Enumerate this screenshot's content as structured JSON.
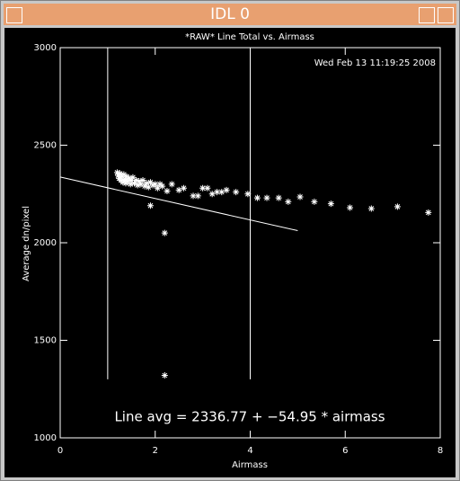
{
  "window_title": "IDL 0",
  "chart_data": {
    "type": "scatter",
    "title": "*RAW* Line Total vs. Airmass",
    "timestamp": "Wed Feb 13 11:19:25 2008",
    "annotation": "Line avg = 2336.77 + −54.95 * airmass",
    "xlabel": "Airmass",
    "ylabel": "Average dn/pixel",
    "color": "#ffffff",
    "xlim": [
      0,
      8
    ],
    "xticks": [
      0,
      2,
      4,
      6,
      8
    ],
    "ylim": [
      1000,
      3000
    ],
    "yticks": [
      1000,
      1500,
      2000,
      2500,
      3000
    ],
    "x": [
      1.2,
      1.22,
      1.24,
      1.26,
      1.28,
      1.3,
      1.32,
      1.34,
      1.36,
      1.38,
      1.4,
      1.42,
      1.45,
      1.48,
      1.5,
      1.53,
      1.56,
      1.6,
      1.63,
      1.66,
      1.7,
      1.74,
      1.78,
      1.82,
      1.86,
      1.9,
      1.95,
      2.0,
      2.05,
      2.1,
      2.15,
      2.25,
      2.35,
      1.9,
      2.2,
      2.2,
      2.5,
      2.6,
      2.8,
      2.9,
      3.0,
      3.1,
      3.2,
      3.3,
      3.4,
      3.5,
      3.7,
      3.95,
      4.15,
      4.35,
      4.6,
      4.8,
      5.05,
      5.35,
      5.7,
      6.1,
      6.55,
      7.1,
      7.75
    ],
    "values": [
      2360,
      2345,
      2330,
      2355,
      2320,
      2340,
      2310,
      2350,
      2325,
      2305,
      2340,
      2315,
      2330,
      2300,
      2320,
      2335,
      2305,
      2320,
      2295,
      2315,
      2300,
      2320,
      2290,
      2305,
      2285,
      2310,
      2295,
      2300,
      2280,
      2300,
      2290,
      2265,
      2300,
      2190,
      2050,
      1320,
      2270,
      2280,
      2240,
      2240,
      2280,
      2280,
      2250,
      2260,
      2260,
      2270,
      2260,
      2250,
      2230,
      2230,
      2230,
      2210,
      2235,
      2210,
      2200,
      2180,
      2175,
      2185,
      2155
    ],
    "fit_line": {
      "x": [
        0,
        5
      ],
      "y": [
        2336.77,
        2062.02
      ]
    },
    "vlines": {
      "x": [
        1,
        4
      ],
      "y": [
        1300,
        3000
      ]
    }
  }
}
